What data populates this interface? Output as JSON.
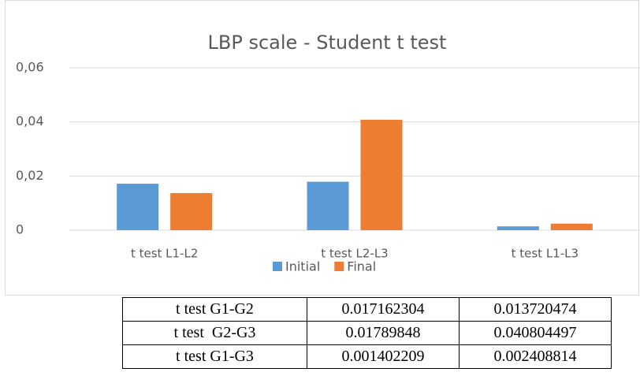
{
  "chart_data": {
    "type": "bar",
    "title": "LBP scale - Student t test",
    "categories": [
      "t test L1-L2",
      "t test L2-L3",
      "t test L1-L3"
    ],
    "series": [
      {
        "name": "Initial",
        "color": "#5b9bd5",
        "values": [
          0.017162304,
          0.01789848,
          0.001402209
        ]
      },
      {
        "name": "Final",
        "color": "#ed7d31",
        "values": [
          0.013720474,
          0.040804497,
          0.002408814
        ]
      }
    ],
    "ylim": [
      0,
      0.06
    ],
    "yticks": [
      0,
      {
        "value": 0.02,
        "label": "0,02"
      },
      {
        "value": 0.04,
        "label": "0,04"
      },
      {
        "value": 0.06,
        "label": "0,06"
      }
    ],
    "grid": true,
    "legend": "bottom"
  },
  "table": {
    "rows": [
      [
        "t test G1-G2",
        "0.017162304",
        "0.013720474"
      ],
      [
        "t test  G2-G3",
        "0.01789848",
        "0.040804497"
      ],
      [
        "t test G1-G3",
        "0.001402209",
        "0.002408814"
      ]
    ]
  }
}
